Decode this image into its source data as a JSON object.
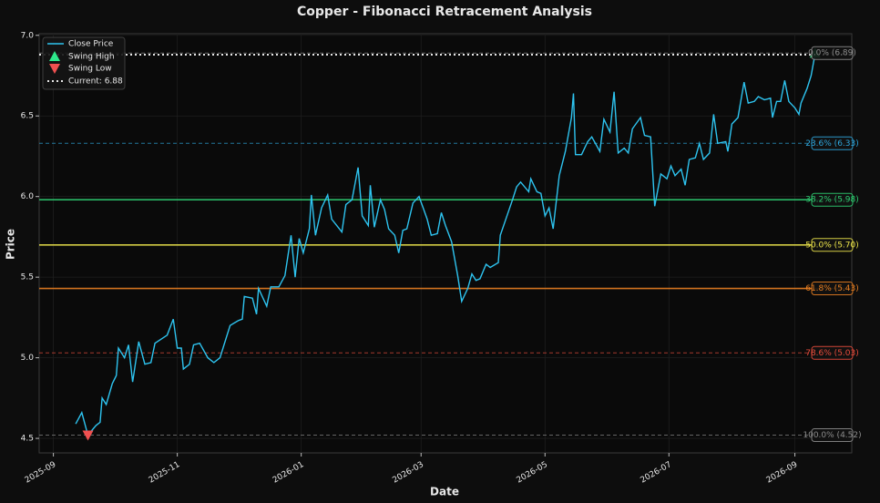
{
  "chart_data": {
    "type": "line",
    "title": "Copper - Fibonacci Retracement Analysis",
    "x_label": "Date",
    "y_label": "Price",
    "xlim": [
      "2025-08-25",
      "2026-09-29"
    ],
    "ylim": [
      4.41,
      7.01
    ],
    "xticks": [
      {
        "value": "2025-09-01",
        "label": "2025-09"
      },
      {
        "value": "2025-11-01",
        "label": "2025-11"
      },
      {
        "value": "2026-01-01",
        "label": "2026-01"
      },
      {
        "value": "2026-03-01",
        "label": "2026-03"
      },
      {
        "value": "2026-05-01",
        "label": "2026-05"
      },
      {
        "value": "2026-07-01",
        "label": "2026-07"
      },
      {
        "value": "2026-09-01",
        "label": "2026-09"
      }
    ],
    "yticks": [
      4.5,
      {
        "value": 5,
        "label": "5.0"
      },
      5.5,
      {
        "value": 6,
        "label": "6.0"
      },
      6.5,
      {
        "value": 7,
        "label": "7.0"
      }
    ],
    "grid": true,
    "legend": "upper left",
    "series": [
      {
        "name": "Close Price",
        "color": "#2ec4f0",
        "x": [
          "2025-09-12",
          "2025-09-15",
          "2025-09-18",
          "2025-09-22",
          "2025-09-24",
          "2025-09-25",
          "2025-09-27",
          "2025-09-30",
          "2025-10-02",
          "2025-10-03",
          "2025-10-06",
          "2025-10-08",
          "2025-10-10",
          "2025-10-13",
          "2025-10-16",
          "2025-10-19",
          "2025-10-21",
          "2025-10-27",
          "2025-10-30",
          "2025-11-01",
          "2025-11-03",
          "2025-11-04",
          "2025-11-07",
          "2025-11-09",
          "2025-11-12",
          "2025-11-16",
          "2025-11-19",
          "2025-11-22",
          "2025-11-24",
          "2025-11-27",
          "2025-12-01",
          "2025-12-03",
          "2025-12-04",
          "2025-12-08",
          "2025-12-10",
          "2025-12-11",
          "2025-12-15",
          "2025-12-17",
          "2025-12-21",
          "2025-12-24",
          "2025-12-27",
          "2025-12-29",
          "2025-12-31",
          "2026-01-02",
          "2026-01-05",
          "2026-01-06",
          "2026-01-08",
          "2026-01-11",
          "2026-01-14",
          "2026-01-16",
          "2026-01-21",
          "2026-01-23",
          "2026-01-26",
          "2026-01-29",
          "2026-01-31",
          "2026-02-03",
          "2026-02-04",
          "2026-02-06",
          "2026-02-09",
          "2026-02-11",
          "2026-02-13",
          "2026-02-16",
          "2026-02-18",
          "2026-02-20",
          "2026-02-22",
          "2026-02-25",
          "2026-02-28",
          "2026-03-02",
          "2026-03-04",
          "2026-03-06",
          "2026-03-09",
          "2026-03-11",
          "2026-03-13",
          "2026-03-16",
          "2026-03-19",
          "2026-03-21",
          "2026-03-24",
          "2026-03-26",
          "2026-03-28",
          "2026-03-30",
          "2026-04-02",
          "2026-04-04",
          "2026-04-08",
          "2026-04-09",
          "2026-04-12",
          "2026-04-15",
          "2026-04-17",
          "2026-04-19",
          "2026-04-23",
          "2026-04-24",
          "2026-04-27",
          "2026-04-29",
          "2026-05-01",
          "2026-05-03",
          "2026-05-05",
          "2026-05-08",
          "2026-05-11",
          "2026-05-14",
          "2026-05-15",
          "2026-05-16",
          "2026-05-19",
          "2026-05-22",
          "2026-05-24",
          "2026-05-28",
          "2026-05-30",
          "2026-06-02",
          "2026-06-04",
          "2026-06-06",
          "2026-06-09",
          "2026-06-11",
          "2026-06-13",
          "2026-06-17",
          "2026-06-19",
          "2026-06-22",
          "2026-06-24",
          "2026-06-27",
          "2026-06-30",
          "2026-07-02",
          "2026-07-04",
          "2026-07-07",
          "2026-07-09",
          "2026-07-11",
          "2026-07-14",
          "2026-07-16",
          "2026-07-18",
          "2026-07-21",
          "2026-07-23",
          "2026-07-25",
          "2026-07-29",
          "2026-07-30",
          "2026-08-01",
          "2026-08-04",
          "2026-08-07",
          "2026-08-09",
          "2026-08-12",
          "2026-08-14",
          "2026-08-17",
          "2026-08-20",
          "2026-08-21",
          "2026-08-23",
          "2026-08-25",
          "2026-08-27",
          "2026-08-29",
          "2026-09-01",
          "2026-09-03",
          "2026-09-04",
          "2026-09-07",
          "2026-09-09",
          "2026-09-11"
        ],
        "values": [
          4.59,
          4.66,
          4.52,
          4.58,
          4.6,
          4.75,
          4.71,
          4.84,
          4.89,
          5.06,
          5.0,
          5.08,
          4.85,
          5.1,
          4.96,
          4.97,
          5.09,
          5.14,
          5.24,
          5.06,
          5.06,
          4.93,
          4.96,
          5.08,
          5.09,
          5.0,
          4.97,
          5.0,
          5.08,
          5.2,
          5.23,
          5.24,
          5.38,
          5.37,
          5.27,
          5.43,
          5.32,
          5.44,
          5.44,
          5.51,
          5.76,
          5.5,
          5.74,
          5.65,
          5.8,
          6.01,
          5.76,
          5.93,
          6.01,
          5.86,
          5.78,
          5.95,
          5.98,
          6.18,
          5.88,
          5.82,
          6.07,
          5.81,
          5.98,
          5.92,
          5.8,
          5.76,
          5.65,
          5.79,
          5.8,
          5.96,
          6.0,
          5.93,
          5.86,
          5.76,
          5.77,
          5.9,
          5.82,
          5.72,
          5.51,
          5.35,
          5.43,
          5.52,
          5.48,
          5.49,
          5.58,
          5.56,
          5.59,
          5.76,
          5.87,
          5.98,
          6.06,
          6.09,
          6.03,
          6.11,
          6.03,
          6.02,
          5.88,
          5.93,
          5.8,
          6.13,
          6.28,
          6.49,
          6.64,
          6.26,
          6.26,
          6.34,
          6.37,
          6.28,
          6.48,
          6.4,
          6.65,
          6.27,
          6.3,
          6.27,
          6.42,
          6.49,
          6.38,
          6.37,
          5.94,
          6.14,
          6.11,
          6.19,
          6.13,
          6.17,
          6.07,
          6.23,
          6.24,
          6.33,
          6.23,
          6.27,
          6.51,
          6.33,
          6.34,
          6.28,
          6.45,
          6.49,
          6.71,
          6.58,
          6.59,
          6.62,
          6.6,
          6.61,
          6.49,
          6.59,
          6.59,
          6.72,
          6.59,
          6.55,
          6.51,
          6.58,
          6.67,
          6.75,
          6.89
        ]
      }
    ],
    "swing_high": {
      "name": "Swing High",
      "color": "#2ee88a",
      "x": "2026-09-11",
      "value": 6.89
    },
    "swing_low": {
      "name": "Swing Low",
      "color": "#f05050",
      "x": "2025-09-18",
      "value": 4.52
    },
    "current": {
      "name": "Current: 6.88",
      "value": 6.88,
      "color": "#e6e6e6"
    },
    "levels": [
      {
        "label": "0.0% (6.89)",
        "value": 6.89,
        "color": "#8a8a8a",
        "style": "dashed"
      },
      {
        "label": "23.6% (6.33)",
        "value": 6.33,
        "color": "#2ea6dc",
        "style": "dashed"
      },
      {
        "label": "38.2% (5.98)",
        "value": 5.98,
        "color": "#2ecc71",
        "style": "solid"
      },
      {
        "label": "50.0% (5.70)",
        "value": 5.7,
        "color": "#e8e04a",
        "style": "solid"
      },
      {
        "label": "61.8% (5.43)",
        "value": 5.43,
        "color": "#e67e22",
        "style": "solid"
      },
      {
        "label": "78.6% (5.03)",
        "value": 5.03,
        "color": "#e74c3c",
        "style": "dashed"
      },
      {
        "label": "100.0% (4.52)",
        "value": 4.52,
        "color": "#8a8a8a",
        "style": "dashed"
      }
    ]
  }
}
